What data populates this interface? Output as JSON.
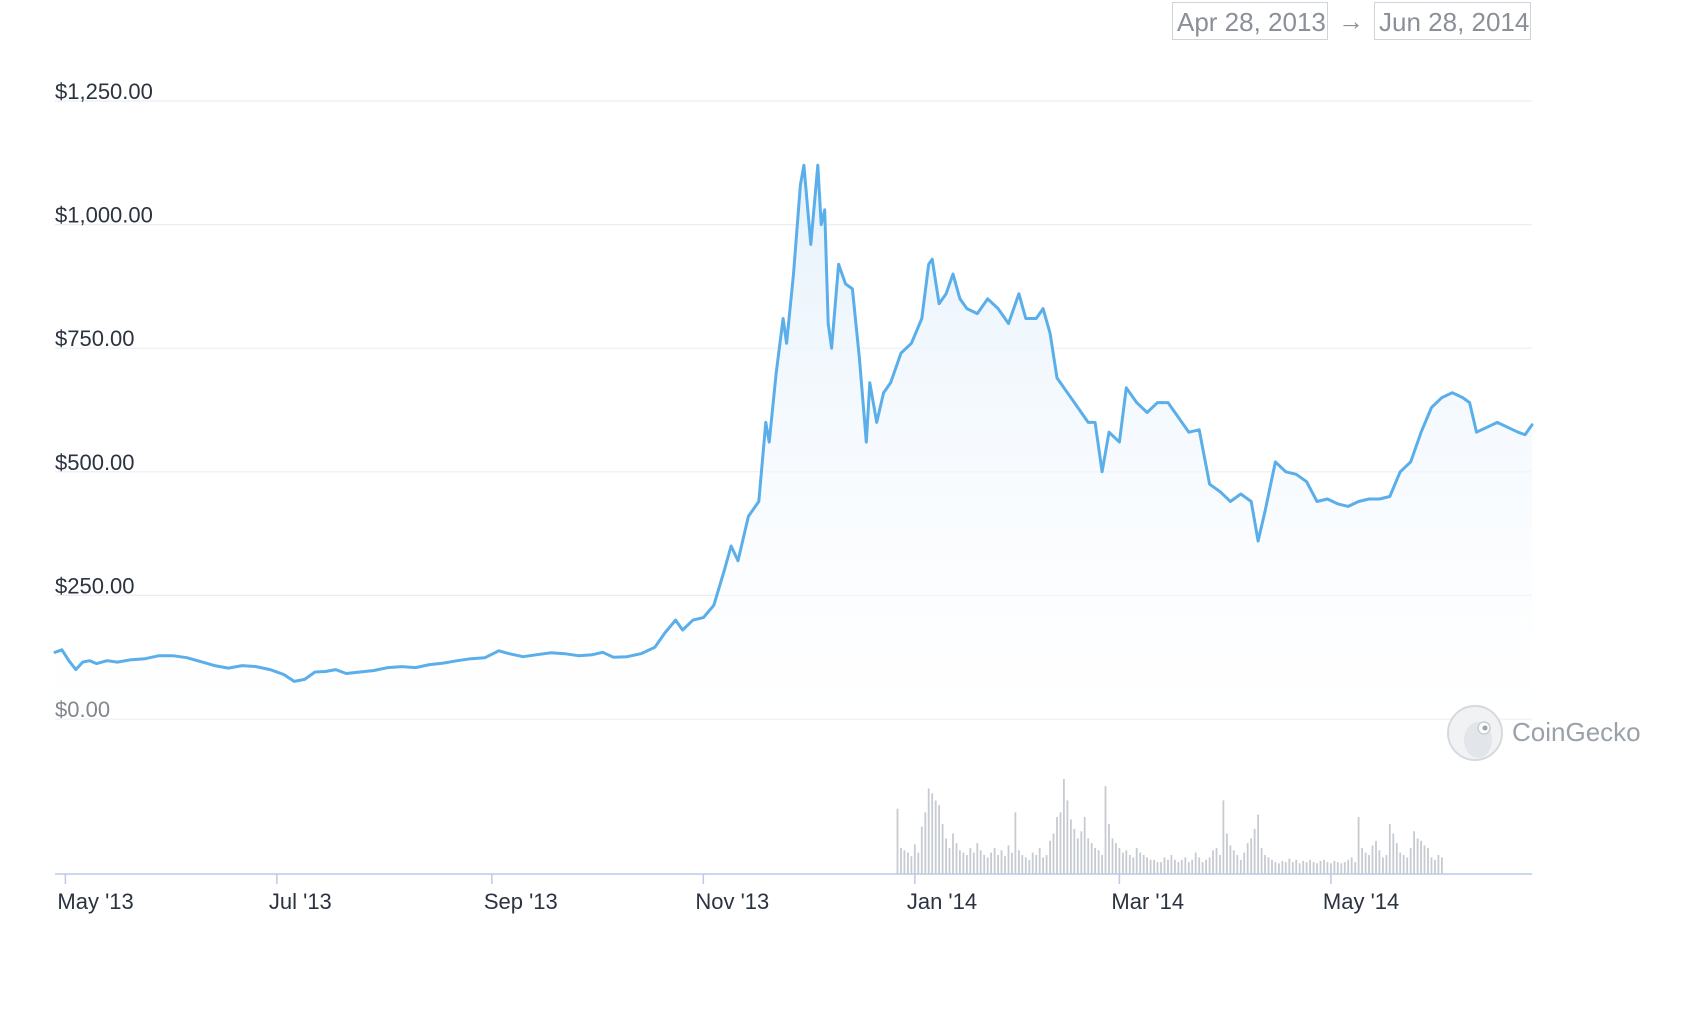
{
  "date_range": {
    "from": "Apr 28, 2013",
    "arrow": "→",
    "to": "Jun 28, 2014"
  },
  "watermark": {
    "text": "CoinGecko",
    "icon": "gecko-logo-icon"
  },
  "colors": {
    "line": "#5aaeea",
    "area_top": "#e3f0fb",
    "volume": "#c6cad1",
    "grid": "#eceef1",
    "axis": "#b9cbe6"
  },
  "chart_data": {
    "type": "area",
    "title": "",
    "xlabel": "",
    "ylabel": "",
    "ylim": [
      0,
      1250
    ],
    "grid": true,
    "yticks": [
      {
        "value": 0,
        "label": "$0.00"
      },
      {
        "value": 250,
        "label": "$250.00"
      },
      {
        "value": 500,
        "label": "$500.00"
      },
      {
        "value": 750,
        "label": "$750.00"
      },
      {
        "value": 1000,
        "label": "$1,000.00"
      },
      {
        "value": 1250,
        "label": "$1,250.00"
      }
    ],
    "xticks": [
      {
        "date": "2013-05-01",
        "label": "May '13"
      },
      {
        "date": "2013-07-01",
        "label": "Jul '13"
      },
      {
        "date": "2013-09-01",
        "label": "Sep '13"
      },
      {
        "date": "2013-11-01",
        "label": "Nov '13"
      },
      {
        "date": "2014-01-01",
        "label": "Jan '14"
      },
      {
        "date": "2014-03-01",
        "label": "Mar '14"
      },
      {
        "date": "2014-05-01",
        "label": "May '14"
      }
    ],
    "xrange": [
      "2013-04-28",
      "2014-06-28"
    ],
    "series": [
      {
        "points": [
          [
            "2013-04-28",
            135
          ],
          [
            "2013-04-30",
            140
          ],
          [
            "2013-05-02",
            118
          ],
          [
            "2013-05-04",
            100
          ],
          [
            "2013-05-06",
            115
          ],
          [
            "2013-05-08",
            118
          ],
          [
            "2013-05-10",
            112
          ],
          [
            "2013-05-13",
            118
          ],
          [
            "2013-05-16",
            115
          ],
          [
            "2013-05-20",
            120
          ],
          [
            "2013-05-24",
            122
          ],
          [
            "2013-05-28",
            128
          ],
          [
            "2013-06-01",
            128
          ],
          [
            "2013-06-05",
            124
          ],
          [
            "2013-06-09",
            116
          ],
          [
            "2013-06-13",
            108
          ],
          [
            "2013-06-17",
            103
          ],
          [
            "2013-06-21",
            108
          ],
          [
            "2013-06-25",
            106
          ],
          [
            "2013-06-29",
            100
          ],
          [
            "2013-07-03",
            90
          ],
          [
            "2013-07-06",
            76
          ],
          [
            "2013-07-09",
            80
          ],
          [
            "2013-07-12",
            95
          ],
          [
            "2013-07-15",
            96
          ],
          [
            "2013-07-18",
            100
          ],
          [
            "2013-07-21",
            92
          ],
          [
            "2013-07-25",
            95
          ],
          [
            "2013-07-29",
            98
          ],
          [
            "2013-08-02",
            104
          ],
          [
            "2013-08-06",
            106
          ],
          [
            "2013-08-10",
            104
          ],
          [
            "2013-08-14",
            110
          ],
          [
            "2013-08-18",
            113
          ],
          [
            "2013-08-22",
            118
          ],
          [
            "2013-08-26",
            122
          ],
          [
            "2013-08-30",
            124
          ],
          [
            "2013-09-03",
            138
          ],
          [
            "2013-09-06",
            132
          ],
          [
            "2013-09-10",
            126
          ],
          [
            "2013-09-14",
            130
          ],
          [
            "2013-09-18",
            134
          ],
          [
            "2013-09-22",
            132
          ],
          [
            "2013-09-26",
            128
          ],
          [
            "2013-09-30",
            130
          ],
          [
            "2013-10-03",
            135
          ],
          [
            "2013-10-06",
            125
          ],
          [
            "2013-10-10",
            126
          ],
          [
            "2013-10-14",
            132
          ],
          [
            "2013-10-18",
            145
          ],
          [
            "2013-10-21",
            175
          ],
          [
            "2013-10-24",
            200
          ],
          [
            "2013-10-26",
            180
          ],
          [
            "2013-10-29",
            200
          ],
          [
            "2013-11-01",
            205
          ],
          [
            "2013-11-04",
            230
          ],
          [
            "2013-11-07",
            300
          ],
          [
            "2013-11-09",
            350
          ],
          [
            "2013-11-11",
            320
          ],
          [
            "2013-11-14",
            410
          ],
          [
            "2013-11-17",
            440
          ],
          [
            "2013-11-19",
            600
          ],
          [
            "2013-11-20",
            560
          ],
          [
            "2013-11-22",
            700
          ],
          [
            "2013-11-24",
            810
          ],
          [
            "2013-11-25",
            760
          ],
          [
            "2013-11-27",
            900
          ],
          [
            "2013-11-29",
            1080
          ],
          [
            "2013-11-30",
            1120
          ],
          [
            "2013-12-02",
            960
          ],
          [
            "2013-12-04",
            1120
          ],
          [
            "2013-12-05",
            1000
          ],
          [
            "2013-12-06",
            1030
          ],
          [
            "2013-12-07",
            800
          ],
          [
            "2013-12-08",
            750
          ],
          [
            "2013-12-10",
            920
          ],
          [
            "2013-12-12",
            880
          ],
          [
            "2013-12-14",
            870
          ],
          [
            "2013-12-16",
            730
          ],
          [
            "2013-12-18",
            560
          ],
          [
            "2013-12-19",
            680
          ],
          [
            "2013-12-21",
            600
          ],
          [
            "2013-12-23",
            660
          ],
          [
            "2013-12-25",
            680
          ],
          [
            "2013-12-28",
            740
          ],
          [
            "2013-12-31",
            760
          ],
          [
            "2014-01-03",
            810
          ],
          [
            "2014-01-05",
            920
          ],
          [
            "2014-01-06",
            930
          ],
          [
            "2014-01-08",
            840
          ],
          [
            "2014-01-10",
            860
          ],
          [
            "2014-01-12",
            900
          ],
          [
            "2014-01-14",
            850
          ],
          [
            "2014-01-16",
            830
          ],
          [
            "2014-01-19",
            820
          ],
          [
            "2014-01-22",
            850
          ],
          [
            "2014-01-25",
            830
          ],
          [
            "2014-01-28",
            800
          ],
          [
            "2014-01-31",
            860
          ],
          [
            "2014-02-02",
            810
          ],
          [
            "2014-02-05",
            810
          ],
          [
            "2014-02-07",
            830
          ],
          [
            "2014-02-09",
            780
          ],
          [
            "2014-02-11",
            690
          ],
          [
            "2014-02-14",
            660
          ],
          [
            "2014-02-17",
            630
          ],
          [
            "2014-02-20",
            600
          ],
          [
            "2014-02-22",
            600
          ],
          [
            "2014-02-24",
            500
          ],
          [
            "2014-02-26",
            580
          ],
          [
            "2014-03-01",
            560
          ],
          [
            "2014-03-03",
            670
          ],
          [
            "2014-03-06",
            640
          ],
          [
            "2014-03-09",
            620
          ],
          [
            "2014-03-12",
            640
          ],
          [
            "2014-03-15",
            640
          ],
          [
            "2014-03-18",
            610
          ],
          [
            "2014-03-21",
            580
          ],
          [
            "2014-03-24",
            585
          ],
          [
            "2014-03-27",
            475
          ],
          [
            "2014-03-30",
            460
          ],
          [
            "2014-04-02",
            440
          ],
          [
            "2014-04-05",
            455
          ],
          [
            "2014-04-08",
            440
          ],
          [
            "2014-04-10",
            360
          ],
          [
            "2014-04-12",
            420
          ],
          [
            "2014-04-15",
            520
          ],
          [
            "2014-04-18",
            500
          ],
          [
            "2014-04-21",
            495
          ],
          [
            "2014-04-24",
            480
          ],
          [
            "2014-04-27",
            440
          ],
          [
            "2014-04-30",
            445
          ],
          [
            "2014-05-03",
            435
          ],
          [
            "2014-05-06",
            430
          ],
          [
            "2014-05-09",
            440
          ],
          [
            "2014-05-12",
            445
          ],
          [
            "2014-05-15",
            445
          ],
          [
            "2014-05-18",
            450
          ],
          [
            "2014-05-21",
            500
          ],
          [
            "2014-05-24",
            520
          ],
          [
            "2014-05-27",
            580
          ],
          [
            "2014-05-30",
            630
          ],
          [
            "2014-06-02",
            650
          ],
          [
            "2014-06-05",
            660
          ],
          [
            "2014-06-08",
            650
          ],
          [
            "2014-06-10",
            640
          ],
          [
            "2014-06-12",
            580
          ],
          [
            "2014-06-15",
            590
          ],
          [
            "2014-06-18",
            600
          ],
          [
            "2014-06-21",
            590
          ],
          [
            "2014-06-24",
            580
          ],
          [
            "2014-06-26",
            575
          ],
          [
            "2014-06-28",
            595
          ]
        ]
      }
    ],
    "volume_series": {
      "start": "2013-12-27",
      "step_days": 1,
      "values": [
        55,
        22,
        20,
        18,
        15,
        25,
        18,
        40,
        52,
        72,
        68,
        62,
        58,
        42,
        30,
        22,
        34,
        26,
        20,
        18,
        16,
        22,
        18,
        26,
        20,
        16,
        14,
        18,
        22,
        16,
        20,
        15,
        24,
        18,
        52,
        20,
        16,
        14,
        12,
        18,
        16,
        22,
        14,
        16,
        28,
        34,
        48,
        52,
        80,
        62,
        46,
        38,
        30,
        36,
        48,
        30,
        26,
        22,
        20,
        16,
        74,
        42,
        30,
        26,
        22,
        18,
        20,
        16,
        14,
        22,
        18,
        16,
        14,
        12,
        12,
        10,
        10,
        14,
        12,
        16,
        12,
        10,
        12,
        14,
        10,
        12,
        18,
        14,
        10,
        12,
        14,
        20,
        22,
        16,
        62,
        34,
        24,
        20,
        16,
        12,
        18,
        26,
        30,
        38,
        50,
        22,
        16,
        14,
        12,
        10,
        9,
        11,
        10,
        13,
        10,
        12,
        9,
        11,
        10,
        12,
        10,
        9,
        11,
        12,
        10,
        9,
        11,
        10,
        9,
        10,
        12,
        14,
        10,
        48,
        22,
        18,
        16,
        24,
        28,
        20,
        14,
        16,
        42,
        34,
        26,
        18,
        16,
        14,
        22,
        36,
        30,
        28,
        24,
        22,
        14,
        12,
        16,
        14
      ]
    }
  }
}
